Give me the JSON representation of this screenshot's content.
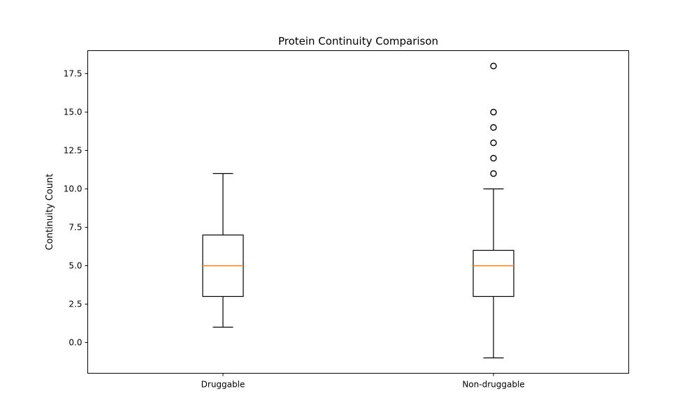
{
  "chart_data": {
    "type": "boxplot",
    "title": "Protein Continuity Comparison",
    "xlabel": "",
    "ylabel": "Continuity Count",
    "ylim": [
      -2.0,
      19.0
    ],
    "yticks": [
      0.0,
      2.5,
      5.0,
      7.5,
      10.0,
      12.5,
      15.0,
      17.5
    ],
    "ytick_labels": [
      "0.0",
      "2.5",
      "5.0",
      "7.5",
      "10.0",
      "12.5",
      "15.0",
      "17.5"
    ],
    "grid": false,
    "categories": [
      "Druggable",
      "Non-druggable"
    ],
    "boxes": [
      {
        "category": "Druggable",
        "whisker_low": 1,
        "q1": 3,
        "median": 5,
        "q3": 7,
        "whisker_high": 11,
        "outliers": []
      },
      {
        "category": "Non-druggable",
        "whisker_low": -1,
        "q1": 3,
        "median": 5,
        "q3": 6,
        "whisker_high": 10,
        "outliers": [
          11,
          12,
          13,
          14,
          15,
          18
        ]
      }
    ],
    "colors": {
      "box": "#000000",
      "median": "#ff7f0e",
      "outlier": "#000000",
      "background": "#ffffff"
    }
  }
}
